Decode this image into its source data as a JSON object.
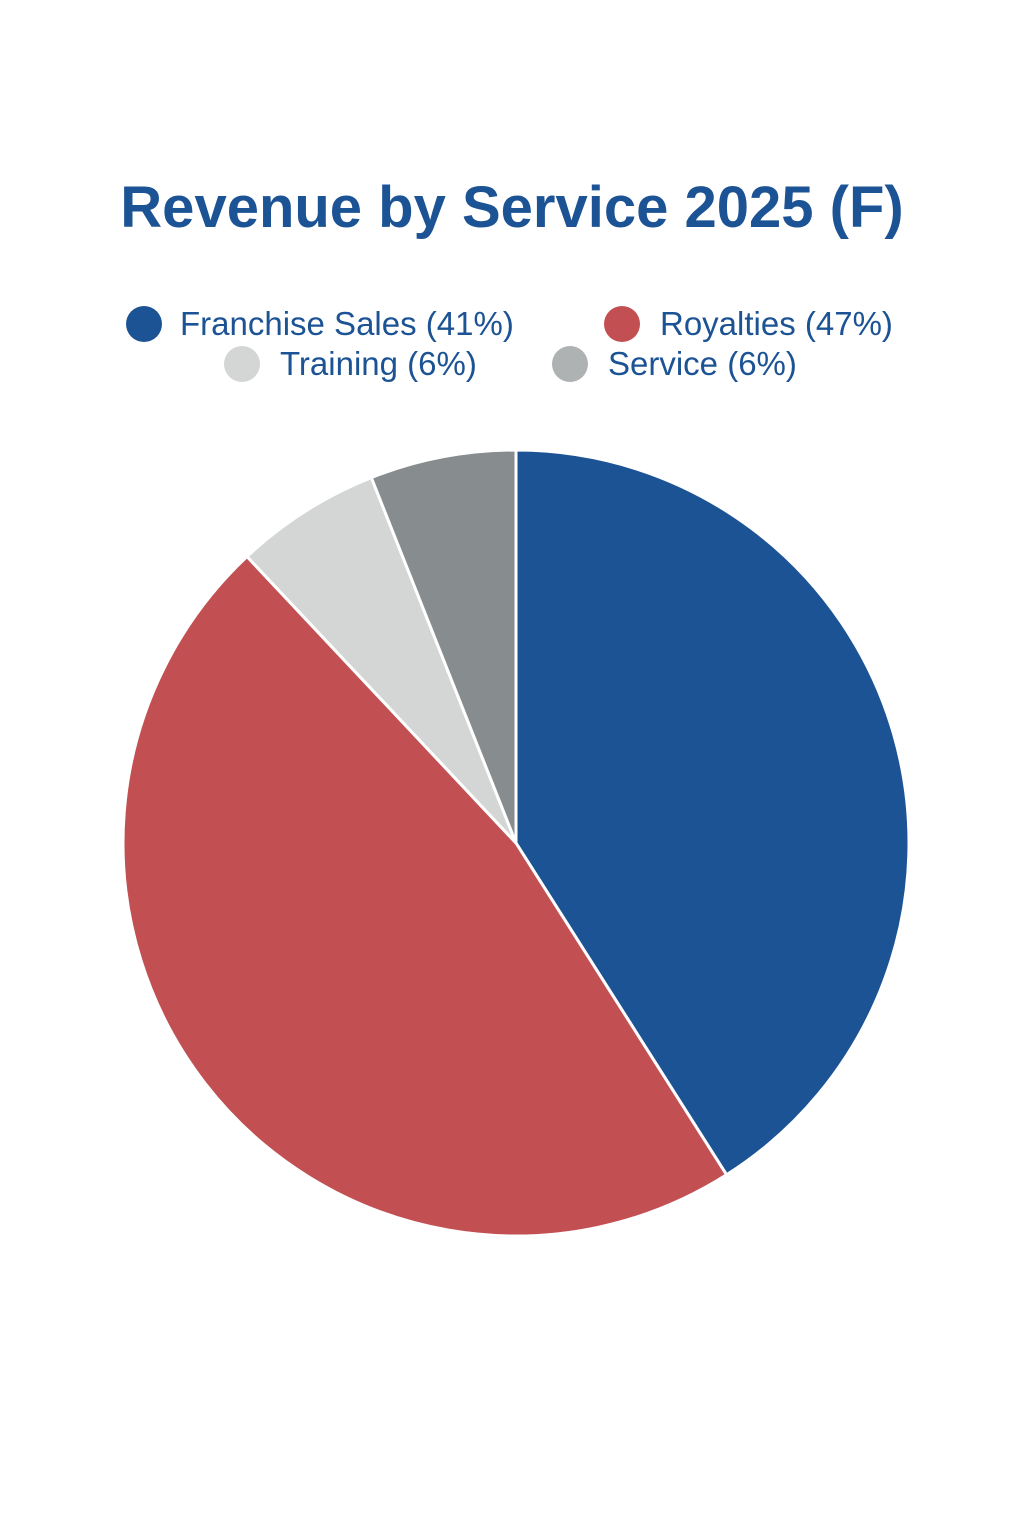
{
  "chart_data": {
    "type": "pie",
    "title": "Revenue by Service 2025 (F)",
    "slices": [
      {
        "label": "Franchise Sales (41%)",
        "name": "Franchise Sales",
        "value": 41,
        "color": "#1c5394"
      },
      {
        "label": "Royalties (47%)",
        "name": "Royalties",
        "value": 47,
        "color": "#c25053"
      },
      {
        "label": "Training (6%)",
        "name": "Training",
        "value": 6,
        "color": "#d4d5d5"
      },
      {
        "label": "Service (6%)",
        "name": "Service",
        "value": 6,
        "color": "#878c8e"
      }
    ],
    "legend_colors": [
      "#1c5394",
      "#c25053",
      "#d4d5d5",
      "#aeb2b3"
    ],
    "legend_position": "top",
    "start_angle": "12 o'clock",
    "direction": "clockwise",
    "title_color": "#1c5394",
    "slice_border_color": "#ffffff"
  }
}
